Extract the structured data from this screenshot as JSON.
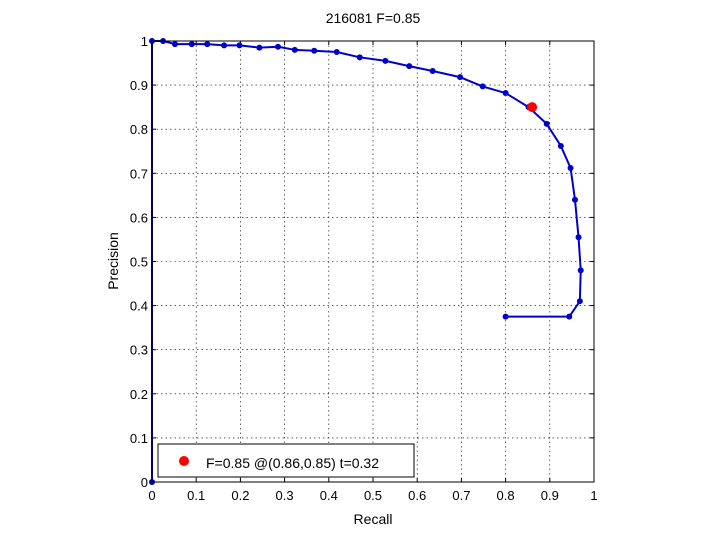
{
  "chart_data": {
    "type": "line",
    "title": "216081 F=0.85",
    "xlabel": "Recall",
    "ylabel": "Precision",
    "xlim": [
      0,
      1
    ],
    "ylim": [
      0,
      1
    ],
    "xticks": [
      "0",
      "0.1",
      "0.2",
      "0.3",
      "0.4",
      "0.5",
      "0.6",
      "0.7",
      "0.8",
      "0.9",
      "1"
    ],
    "yticks": [
      "0",
      "0.1",
      "0.2",
      "0.3",
      "0.4",
      "0.5",
      "0.6",
      "0.7",
      "0.8",
      "0.9",
      "1"
    ],
    "grid": true,
    "legend_position": "bottom-left",
    "series": [
      {
        "color": "#0000cc",
        "points": [
          [
            0.0,
            0.0
          ],
          [
            0.0,
            1.0
          ],
          [
            0.025,
            1.0
          ],
          [
            0.052,
            0.993
          ],
          [
            0.09,
            0.993
          ],
          [
            0.125,
            0.993
          ],
          [
            0.163,
            0.99
          ],
          [
            0.198,
            0.99
          ],
          [
            0.243,
            0.985
          ],
          [
            0.285,
            0.987
          ],
          [
            0.323,
            0.98
          ],
          [
            0.367,
            0.978
          ],
          [
            0.418,
            0.975
          ],
          [
            0.47,
            0.963
          ],
          [
            0.528,
            0.955
          ],
          [
            0.582,
            0.943
          ],
          [
            0.635,
            0.932
          ],
          [
            0.697,
            0.918
          ],
          [
            0.748,
            0.897
          ],
          [
            0.8,
            0.882
          ],
          [
            0.852,
            0.85
          ],
          [
            0.893,
            0.812
          ],
          [
            0.925,
            0.762
          ],
          [
            0.947,
            0.712
          ],
          [
            0.957,
            0.64
          ],
          [
            0.965,
            0.555
          ],
          [
            0.97,
            0.48
          ],
          [
            0.968,
            0.41
          ],
          [
            0.944,
            0.375
          ],
          [
            0.8,
            0.375
          ]
        ]
      }
    ],
    "best_point": {
      "x": 0.86,
      "y": 0.85,
      "color": "#ff0000"
    },
    "legend": {
      "label": "F=0.85 @(0.86,0.85) t=0.32",
      "marker_color": "#ff0000"
    }
  }
}
